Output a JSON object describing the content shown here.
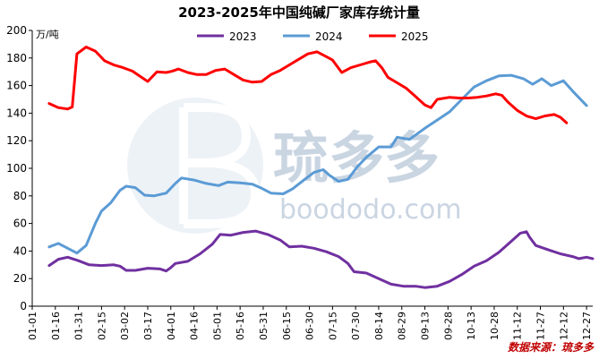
{
  "chart_data": {
    "type": "line",
    "title": "2023-2025年中国纯碱厂家库存统计量",
    "unit": "万/吨",
    "ylim": [
      0,
      200
    ],
    "yticks": [
      0,
      20,
      40,
      60,
      80,
      100,
      120,
      140,
      160,
      180,
      200
    ],
    "grid": false,
    "legend_position": "top",
    "x": [
      "01-01",
      "01-16",
      "01-31",
      "02-15",
      "03-02",
      "03-17",
      "04-01",
      "04-16",
      "05-01",
      "05-16",
      "05-31",
      "06-15",
      "06-30",
      "07-15",
      "07-30",
      "08-14",
      "08-29",
      "09-13",
      "09-28",
      "10-13",
      "10-28",
      "11-12",
      "11-27",
      "12-12",
      "12-27"
    ],
    "x_range": [
      "01-01",
      "12-31"
    ],
    "series": [
      {
        "name": "2023",
        "color": "#7030a0",
        "points": [
          [
            "01-12",
            29.5
          ],
          [
            "01-18",
            34
          ],
          [
            "01-24",
            35.5
          ],
          [
            "01-31",
            33
          ],
          [
            "02-07",
            30
          ],
          [
            "02-15",
            29.5
          ],
          [
            "02-23",
            30
          ],
          [
            "02-27",
            29
          ],
          [
            "03-03",
            26
          ],
          [
            "03-09",
            26
          ],
          [
            "03-17",
            27.5
          ],
          [
            "03-25",
            27
          ],
          [
            "03-29",
            25.5
          ],
          [
            "04-01",
            28
          ],
          [
            "04-04",
            31
          ],
          [
            "04-12",
            32.5
          ],
          [
            "04-20",
            38
          ],
          [
            "04-28",
            45
          ],
          [
            "05-03",
            52
          ],
          [
            "05-10",
            51.5
          ],
          [
            "05-18",
            53.5
          ],
          [
            "05-26",
            54.5
          ],
          [
            "06-03",
            52
          ],
          [
            "06-11",
            48
          ],
          [
            "06-17",
            43
          ],
          [
            "06-25",
            43.5
          ],
          [
            "07-03",
            42
          ],
          [
            "07-11",
            39.5
          ],
          [
            "07-19",
            36
          ],
          [
            "07-25",
            31
          ],
          [
            "07-29",
            25
          ],
          [
            "08-06",
            24
          ],
          [
            "08-14",
            20
          ],
          [
            "08-22",
            16
          ],
          [
            "08-30",
            14.5
          ],
          [
            "09-07",
            14.5
          ],
          [
            "09-13",
            13.5
          ],
          [
            "09-21",
            14.5
          ],
          [
            "09-29",
            18
          ],
          [
            "10-07",
            23
          ],
          [
            "10-15",
            29
          ],
          [
            "10-23",
            33
          ],
          [
            "10-31",
            39
          ],
          [
            "11-08",
            47
          ],
          [
            "11-14",
            53
          ],
          [
            "11-18",
            54
          ],
          [
            "11-20",
            50
          ],
          [
            "11-24",
            44
          ],
          [
            "12-02",
            41
          ],
          [
            "12-10",
            38
          ],
          [
            "12-18",
            36
          ],
          [
            "12-22",
            34.5
          ],
          [
            "12-27",
            35.5
          ],
          [
            "12-31",
            34.5
          ]
        ]
      },
      {
        "name": "2024",
        "color": "#5b9bd5",
        "points": [
          [
            "01-12",
            43
          ],
          [
            "01-18",
            45.5
          ],
          [
            "01-24",
            42
          ],
          [
            "01-30",
            38.5
          ],
          [
            "02-05",
            44
          ],
          [
            "02-11",
            60
          ],
          [
            "02-15",
            69
          ],
          [
            "02-21",
            75
          ],
          [
            "02-27",
            84
          ],
          [
            "03-03",
            87
          ],
          [
            "03-09",
            86
          ],
          [
            "03-15",
            80.5
          ],
          [
            "03-21",
            80
          ],
          [
            "03-29",
            82
          ],
          [
            "04-04",
            89
          ],
          [
            "04-08",
            93
          ],
          [
            "04-16",
            91.5
          ],
          [
            "04-24",
            89
          ],
          [
            "05-02",
            87.5
          ],
          [
            "05-08",
            90
          ],
          [
            "05-16",
            89.5
          ],
          [
            "05-24",
            88.5
          ],
          [
            "05-30",
            85.5
          ],
          [
            "06-05",
            82
          ],
          [
            "06-13",
            81.5
          ],
          [
            "06-19",
            85
          ],
          [
            "06-27",
            92
          ],
          [
            "07-03",
            97
          ],
          [
            "07-09",
            99
          ],
          [
            "07-13",
            95
          ],
          [
            "07-19",
            90.5
          ],
          [
            "07-25",
            92
          ],
          [
            "07-31",
            101
          ],
          [
            "08-06",
            108
          ],
          [
            "08-14",
            115.5
          ],
          [
            "08-22",
            115.5
          ],
          [
            "08-26",
            122.5
          ],
          [
            "09-03",
            121
          ],
          [
            "09-13",
            129
          ],
          [
            "09-21",
            135
          ],
          [
            "09-29",
            141
          ],
          [
            "10-07",
            150
          ],
          [
            "10-15",
            159
          ],
          [
            "10-23",
            163.5
          ],
          [
            "10-31",
            167
          ],
          [
            "11-08",
            167.5
          ],
          [
            "11-16",
            165
          ],
          [
            "11-22",
            161
          ],
          [
            "11-28",
            165
          ],
          [
            "12-04",
            160
          ],
          [
            "12-12",
            163.5
          ],
          [
            "12-18",
            156
          ],
          [
            "12-27",
            145.5
          ]
        ]
      },
      {
        "name": "2025",
        "color": "#ff0000",
        "points": [
          [
            "01-12",
            147
          ],
          [
            "01-18",
            144
          ],
          [
            "01-24",
            143
          ],
          [
            "01-27",
            144.5
          ],
          [
            "01-30",
            183
          ],
          [
            "02-05",
            188
          ],
          [
            "02-11",
            185
          ],
          [
            "02-17",
            178
          ],
          [
            "02-23",
            175
          ],
          [
            "03-01",
            173
          ],
          [
            "03-07",
            170.5
          ],
          [
            "03-13",
            166
          ],
          [
            "03-17",
            163
          ],
          [
            "03-23",
            170
          ],
          [
            "03-29",
            169.5
          ],
          [
            "04-02",
            170.5
          ],
          [
            "04-06",
            172
          ],
          [
            "04-12",
            169.5
          ],
          [
            "04-18",
            168
          ],
          [
            "04-24",
            168
          ],
          [
            "04-30",
            171
          ],
          [
            "05-06",
            172
          ],
          [
            "05-12",
            168
          ],
          [
            "05-18",
            164
          ],
          [
            "05-24",
            162.5
          ],
          [
            "05-30",
            163
          ],
          [
            "06-05",
            168
          ],
          [
            "06-11",
            171
          ],
          [
            "06-17",
            175
          ],
          [
            "06-23",
            179
          ],
          [
            "06-29",
            183
          ],
          [
            "07-05",
            184.5
          ],
          [
            "07-11",
            181
          ],
          [
            "07-15",
            178.5
          ],
          [
            "07-21",
            169.5
          ],
          [
            "07-27",
            173
          ],
          [
            "08-02",
            175
          ],
          [
            "08-08",
            177
          ],
          [
            "08-12",
            178
          ],
          [
            "08-16",
            173
          ],
          [
            "08-20",
            166
          ],
          [
            "08-26",
            162
          ],
          [
            "09-01",
            158
          ],
          [
            "09-07",
            152
          ],
          [
            "09-13",
            146
          ],
          [
            "09-17",
            144
          ],
          [
            "09-21",
            150
          ],
          [
            "09-29",
            151.5
          ],
          [
            "10-05",
            151
          ],
          [
            "10-11",
            151
          ],
          [
            "10-17",
            151.5
          ],
          [
            "10-23",
            152.5
          ],
          [
            "10-29",
            154
          ],
          [
            "11-02",
            153
          ],
          [
            "11-06",
            148
          ],
          [
            "11-12",
            142
          ],
          [
            "11-18",
            138
          ],
          [
            "11-24",
            136
          ],
          [
            "11-30",
            138
          ],
          [
            "12-06",
            139
          ],
          [
            "12-10",
            137
          ],
          [
            "12-14",
            133
          ]
        ]
      }
    ],
    "watermark": {
      "text_cn": "琉多多",
      "text_en": "boododo.com"
    },
    "source": "数据来源：琉多多"
  }
}
